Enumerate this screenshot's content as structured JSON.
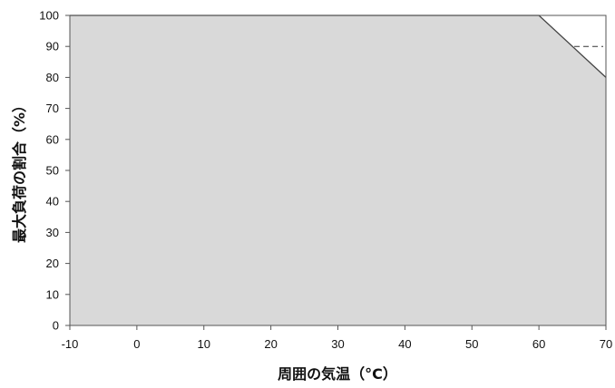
{
  "chart_data": {
    "type": "area",
    "xlabel": "周囲の気温（°C）",
    "ylabel": "最大負荷の割合（%）",
    "x_ticks": [
      -10,
      0,
      10,
      20,
      30,
      40,
      50,
      60,
      70
    ],
    "y_ticks": [
      0,
      10,
      20,
      30,
      40,
      50,
      60,
      70,
      80,
      90,
      100
    ],
    "xlim": [
      -10,
      70
    ],
    "ylim": [
      0,
      100
    ],
    "grid": false,
    "series": [
      {
        "x": [
          -10,
          60,
          70
        ],
        "y": [
          100,
          100,
          80
        ],
        "fill": "#d9d9d9"
      }
    ],
    "reference_lines": [
      {
        "y": 90,
        "x_from": 65,
        "x_to": 70,
        "style": "dashed"
      }
    ]
  }
}
